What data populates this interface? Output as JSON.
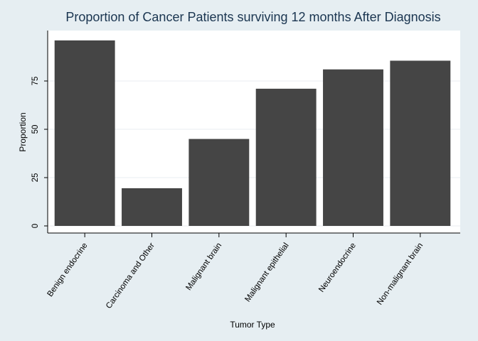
{
  "chart_data": {
    "type": "bar",
    "title": "Proportion of Cancer Patients surviving 12 months After Diagnosis",
    "xlabel": "Tumor Type",
    "ylabel": "Proportion",
    "categories": [
      "Benign endocrine",
      "Carcinoma and Other",
      "Malignant brain",
      "Malignant epithelial",
      "Neuroendocrine",
      "Non-malignant brain"
    ],
    "values": [
      96,
      19.5,
      45,
      71,
      81,
      85.5
    ],
    "yticks": [
      "0",
      "25",
      "50",
      "75"
    ],
    "ytick_values": [
      0,
      25,
      50,
      75
    ],
    "ylim": [
      0,
      100
    ],
    "grid": true,
    "colors": {
      "bar": "#454545",
      "plot_bg": "#ffffff",
      "page_bg": "#e6eef2",
      "grid": "#e8edf0",
      "title": "#1a3550"
    }
  }
}
